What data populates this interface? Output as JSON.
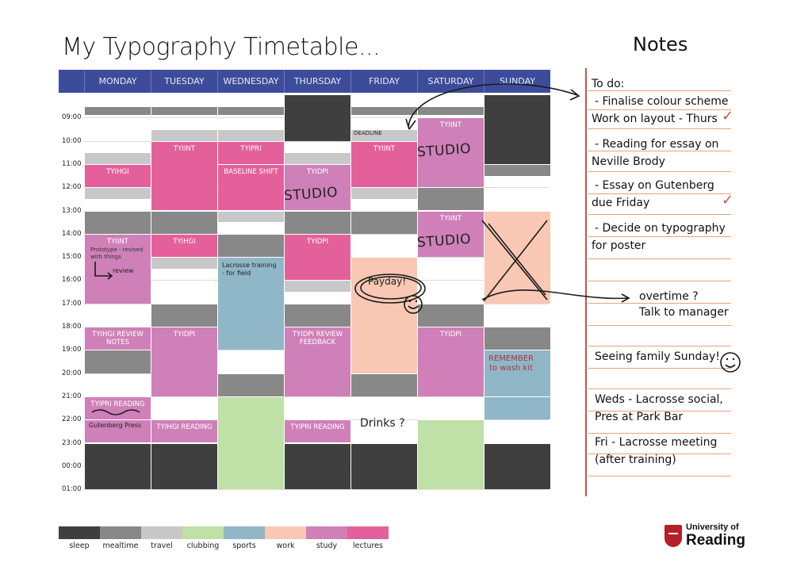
{
  "title": "My Typography Timetable...",
  "notes_title": "Notes",
  "days": [
    "MONDAY",
    "TUESDAY",
    "WEDNESDAY",
    "THURSDAY",
    "FRIDAY",
    "SATURDAY",
    "SUNDAY"
  ],
  "times": [
    "09:00",
    "10:00",
    "11:00",
    "12:00",
    "13:00",
    "14:00",
    "15:00",
    "16:00",
    "17:00",
    "18:00",
    "19:00",
    "20:00",
    "21:00",
    "22:00",
    "23:00",
    "00:00",
    "01:00"
  ],
  "colors": {
    "sleep": "#3f3f3f",
    "mealtime": "#888888",
    "travel": "#c8c8c8",
    "clubbing": "#bfe0a6",
    "sports": "#8fb7c7",
    "work": "#f8c8b4",
    "study": "#cf80b8",
    "lectures": "#e4609a",
    "header": "#3d4c9a"
  },
  "blocks": [
    {
      "day": 0,
      "start": 8.5,
      "end": 8.9,
      "cat": "mealtime"
    },
    {
      "day": 0,
      "start": 10.5,
      "end": 11,
      "cat": "travel"
    },
    {
      "day": 0,
      "start": 11,
      "end": 12,
      "cat": "lectures",
      "label": "TYIHGI"
    },
    {
      "day": 0,
      "start": 12,
      "end": 12.5,
      "cat": "travel"
    },
    {
      "day": 0,
      "start": 13,
      "end": 14,
      "cat": "mealtime"
    },
    {
      "day": 0,
      "start": 14,
      "end": 17,
      "cat": "study",
      "label": "TYIINT"
    },
    {
      "day": 0,
      "start": 18,
      "end": 19,
      "cat": "study",
      "label": "TYIHGI REVIEW\nNOTES"
    },
    {
      "day": 0,
      "start": 19,
      "end": 20,
      "cat": "mealtime"
    },
    {
      "day": 0,
      "start": 21,
      "end": 22,
      "cat": "study",
      "label": "TYIPRI READING"
    },
    {
      "day": 0,
      "start": 22,
      "end": 23,
      "cat": "study",
      "label": ""
    },
    {
      "day": 0,
      "start": 23,
      "end": 25,
      "cat": "sleep"
    },
    {
      "day": 1,
      "start": 8.5,
      "end": 8.9,
      "cat": "mealtime"
    },
    {
      "day": 1,
      "start": 9.5,
      "end": 10,
      "cat": "travel"
    },
    {
      "day": 1,
      "start": 10,
      "end": 13,
      "cat": "lectures",
      "label": "TYIINT"
    },
    {
      "day": 1,
      "start": 13,
      "end": 14,
      "cat": "mealtime"
    },
    {
      "day": 1,
      "start": 14,
      "end": 15,
      "cat": "lectures",
      "label": "TYIHGI"
    },
    {
      "day": 1,
      "start": 15,
      "end": 15.5,
      "cat": "travel"
    },
    {
      "day": 1,
      "start": 17,
      "end": 18,
      "cat": "mealtime"
    },
    {
      "day": 1,
      "start": 18,
      "end": 21,
      "cat": "study",
      "label": "TYIDPI"
    },
    {
      "day": 1,
      "start": 22,
      "end": 23,
      "cat": "study",
      "label": "TYIHGI READING"
    },
    {
      "day": 1,
      "start": 23,
      "end": 25,
      "cat": "sleep"
    },
    {
      "day": 2,
      "start": 8.5,
      "end": 8.9,
      "cat": "mealtime"
    },
    {
      "day": 2,
      "start": 9.5,
      "end": 10,
      "cat": "travel"
    },
    {
      "day": 2,
      "start": 10,
      "end": 11,
      "cat": "lectures",
      "label": "TYIPRI"
    },
    {
      "day": 2,
      "start": 11,
      "end": 13,
      "cat": "lectures",
      "label": "BASELINE SHIFT"
    },
    {
      "day": 2,
      "start": 13,
      "end": 13.5,
      "cat": "travel"
    },
    {
      "day": 2,
      "start": 14,
      "end": 15,
      "cat": "mealtime"
    },
    {
      "day": 2,
      "start": 15,
      "end": 19,
      "cat": "sports"
    },
    {
      "day": 2,
      "start": 20,
      "end": 21,
      "cat": "mealtime"
    },
    {
      "day": 2,
      "start": 21,
      "end": 25,
      "cat": "clubbing"
    },
    {
      "day": 3,
      "start": 8,
      "end": 10,
      "cat": "sleep"
    },
    {
      "day": 3,
      "start": 10.5,
      "end": 11,
      "cat": "travel"
    },
    {
      "day": 3,
      "start": 11,
      "end": 13,
      "cat": "study",
      "label": "TYIDPI"
    },
    {
      "day": 3,
      "start": 13,
      "end": 14,
      "cat": "mealtime"
    },
    {
      "day": 3,
      "start": 14,
      "end": 16,
      "cat": "lectures",
      "label": "TYIDPI"
    },
    {
      "day": 3,
      "start": 16,
      "end": 16.5,
      "cat": "travel"
    },
    {
      "day": 3,
      "start": 17,
      "end": 18,
      "cat": "mealtime"
    },
    {
      "day": 3,
      "start": 18,
      "end": 21,
      "cat": "study",
      "label": "TYIDPI REVIEW\nFEEDBACK"
    },
    {
      "day": 3,
      "start": 22,
      "end": 23,
      "cat": "study",
      "label": "TYIPRI READING"
    },
    {
      "day": 3,
      "start": 23,
      "end": 25,
      "cat": "sleep"
    },
    {
      "day": 4,
      "start": 8.5,
      "end": 8.9,
      "cat": "mealtime"
    },
    {
      "day": 4,
      "start": 9.5,
      "end": 10,
      "cat": "travel"
    },
    {
      "day": 4,
      "start": 10,
      "end": 12,
      "cat": "lectures",
      "label": "TYIINT"
    },
    {
      "day": 4,
      "start": 12,
      "end": 12.5,
      "cat": "travel"
    },
    {
      "day": 4,
      "start": 13,
      "end": 14,
      "cat": "mealtime"
    },
    {
      "day": 4,
      "start": 15,
      "end": 20,
      "cat": "work"
    },
    {
      "day": 4,
      "start": 20,
      "end": 21,
      "cat": "mealtime"
    },
    {
      "day": 4,
      "start": 23,
      "end": 25,
      "cat": "sleep"
    },
    {
      "day": 5,
      "start": 8.5,
      "end": 8.9,
      "cat": "mealtime"
    },
    {
      "day": 5,
      "start": 9,
      "end": 12,
      "cat": "study",
      "label": "TYIINT"
    },
    {
      "day": 5,
      "start": 12,
      "end": 13,
      "cat": "mealtime"
    },
    {
      "day": 5,
      "start": 13,
      "end": 15,
      "cat": "study",
      "label": "TYIINT"
    },
    {
      "day": 5,
      "start": 17,
      "end": 18,
      "cat": "mealtime"
    },
    {
      "day": 5,
      "start": 18,
      "end": 21,
      "cat": "study",
      "label": "TYIDPI"
    },
    {
      "day": 5,
      "start": 22,
      "end": 25,
      "cat": "clubbing"
    },
    {
      "day": 6,
      "start": 8,
      "end": 11,
      "cat": "sleep"
    },
    {
      "day": 6,
      "start": 11,
      "end": 11.5,
      "cat": "mealtime"
    },
    {
      "day": 6,
      "start": 13,
      "end": 17,
      "cat": "work"
    },
    {
      "day": 6,
      "start": 18,
      "end": 19,
      "cat": "mealtime"
    },
    {
      "day": 6,
      "start": 19,
      "end": 21,
      "cat": "sports"
    },
    {
      "day": 6,
      "start": 21,
      "end": 22,
      "cat": "sports"
    },
    {
      "day": 6,
      "start": 23,
      "end": 25,
      "cat": "sleep"
    }
  ],
  "handwriting": {
    "studio_sat_1": "STUDIO",
    "studio_thu": "STUDIO",
    "studio_sat_2": "STUDIO",
    "deadline": "DEADLINE",
    "prototype_note": "Prototype - revised\nwith things",
    "review": "review",
    "lacrosse": "Lacrosse training\n- for field",
    "payday": "Payday!",
    "remember": "REMEMBER\nto wash kit",
    "drinks": "Drinks ?",
    "gutenberg": "Gutenberg Press"
  },
  "notes": [
    {
      "text": "To do:",
      "tick": false
    },
    {
      "text": "- Finalise colour scheme",
      "tick": false
    },
    {
      "text": "Work on layout - Thurs",
      "tick": true
    },
    {
      "text": "- Reading for essay on",
      "tick": false
    },
    {
      "text": "Neville Brody",
      "tick": false
    },
    {
      "text": "- Essay on Gutenberg",
      "tick": false
    },
    {
      "text": "due Friday",
      "tick": true
    },
    {
      "text": "- Decide on typography",
      "tick": false
    },
    {
      "text": "for poster",
      "tick": false
    },
    {
      "text": "overtime ?",
      "tick": false
    },
    {
      "text": "Talk to manager",
      "tick": false
    },
    {
      "text": "Seeing family Sunday!",
      "tick": false
    },
    {
      "text": "Weds - Lacrosse social,",
      "tick": false
    },
    {
      "text": "Pres at Park Bar",
      "tick": false
    },
    {
      "text": "Fri - Lacrosse meeting",
      "tick": false
    },
    {
      "text": "(after training)",
      "tick": false
    }
  ],
  "tick_mark": "✓",
  "legend": [
    {
      "cat": "sleep",
      "label": "sleep"
    },
    {
      "cat": "mealtime",
      "label": "mealtime"
    },
    {
      "cat": "travel",
      "label": "travel"
    },
    {
      "cat": "clubbing",
      "label": "clubbing"
    },
    {
      "cat": "sports",
      "label": "sports"
    },
    {
      "cat": "work",
      "label": "work"
    },
    {
      "cat": "study",
      "label": "study"
    },
    {
      "cat": "lectures",
      "label": "lectures"
    }
  ],
  "logo": {
    "line1": "University of",
    "line2": "Reading"
  }
}
